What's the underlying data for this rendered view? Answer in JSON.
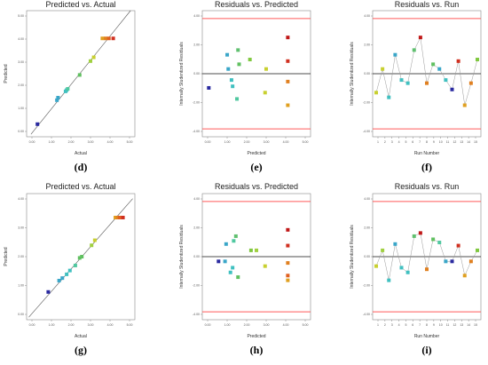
{
  "chart_data": [
    {
      "type": "scatter",
      "panel": "d",
      "title": "Predicted vs. Actual",
      "xlabel": "Actual",
      "ylabel": "Predicted",
      "letter": "(d)",
      "xlim": [
        0,
        10
      ],
      "ylim": [
        0,
        10
      ],
      "xticks": [
        "0.00",
        "1.00",
        "2.00",
        "3.00",
        "4.00",
        "5.00"
      ],
      "yticks": [
        "0.00",
        "1.00",
        "2.00",
        "3.00",
        "4.00",
        "5.00"
      ],
      "reference_line": [
        [
          0.4,
          0.2
        ],
        [
          9.6,
          10.0
        ]
      ],
      "points": [
        {
          "x": 1.0,
          "y": 1.0,
          "color": "#2a2aa0"
        },
        {
          "x": 2.8,
          "y": 2.9,
          "color": "#3aa6c8"
        },
        {
          "x": 2.9,
          "y": 3.1,
          "color": "#3aa6c8"
        },
        {
          "x": 3.6,
          "y": 3.6,
          "color": "#40c0c0"
        },
        {
          "x": 3.7,
          "y": 3.7,
          "color": "#40c0c0"
        },
        {
          "x": 3.8,
          "y": 3.8,
          "color": "#50c8a0"
        },
        {
          "x": 4.9,
          "y": 4.9,
          "color": "#60c060"
        },
        {
          "x": 5.9,
          "y": 6.0,
          "color": "#a0d040"
        },
        {
          "x": 6.2,
          "y": 6.3,
          "color": "#c8d030"
        },
        {
          "x": 7.0,
          "y": 7.8,
          "color": "#e0a020"
        },
        {
          "x": 7.3,
          "y": 7.8,
          "color": "#e08020"
        },
        {
          "x": 7.6,
          "y": 7.8,
          "color": "#e06020"
        },
        {
          "x": 8.0,
          "y": 7.8,
          "color": "#d03020"
        }
      ]
    },
    {
      "type": "scatter",
      "panel": "e",
      "title": "Residuals vs. Predicted",
      "xlabel": "Predicted",
      "ylabel": "Internally Studentized Residuals",
      "letter": "(e)",
      "xlim": [
        0,
        10
      ],
      "ylim": [
        -4,
        4
      ],
      "xticks": [
        "0.00",
        "1.00",
        "2.00",
        "3.00",
        "4.00",
        "5.00"
      ],
      "yticks": [
        "-4.00",
        "-2.00",
        "0.00",
        "2.00",
        "4.00"
      ],
      "limit_lines": [
        3.5,
        -3.5
      ],
      "points": [
        {
          "x": 0.6,
          "y": -0.9,
          "color": "#2a2aa0"
        },
        {
          "x": 2.3,
          "y": 1.2,
          "color": "#3aa6c8"
        },
        {
          "x": 2.4,
          "y": 0.3,
          "color": "#3aa6c8"
        },
        {
          "x": 2.7,
          "y": -0.4,
          "color": "#40c0c0"
        },
        {
          "x": 2.8,
          "y": -0.8,
          "color": "#40c0c0"
        },
        {
          "x": 3.2,
          "y": -1.6,
          "color": "#50c8a0"
        },
        {
          "x": 3.3,
          "y": 1.5,
          "color": "#60c070"
        },
        {
          "x": 3.4,
          "y": 0.6,
          "color": "#60c060"
        },
        {
          "x": 4.4,
          "y": 0.9,
          "color": "#80c840"
        },
        {
          "x": 5.8,
          "y": -1.2,
          "color": "#c8d030"
        },
        {
          "x": 5.9,
          "y": 0.3,
          "color": "#c8d030"
        },
        {
          "x": 7.9,
          "y": 2.3,
          "color": "#c01818"
        },
        {
          "x": 7.9,
          "y": 0.8,
          "color": "#d03020"
        },
        {
          "x": 7.9,
          "y": -0.5,
          "color": "#e08020"
        },
        {
          "x": 7.9,
          "y": -2.0,
          "color": "#e0a020"
        }
      ]
    },
    {
      "type": "line",
      "panel": "f",
      "title": "Residuals vs. Run",
      "xlabel": "Run Number",
      "ylabel": "Internally Studentized Residuals",
      "letter": "(f)",
      "xlim": [
        0,
        16
      ],
      "ylim": [
        -4,
        4
      ],
      "xticks": [
        "1",
        "2",
        "3",
        "4",
        "5",
        "6",
        "7",
        "8",
        "9",
        "10",
        "11",
        "12",
        "13",
        "14",
        "15"
      ],
      "yticks": [
        "-4.00",
        "-2.00",
        "0.00",
        "2.00",
        "4.00"
      ],
      "limit_lines": [
        3.5,
        -3.5
      ],
      "points": [
        {
          "x": 1,
          "y": -1.2,
          "color": "#c8d030"
        },
        {
          "x": 2,
          "y": 0.3,
          "color": "#c8d030"
        },
        {
          "x": 3,
          "y": -1.5,
          "color": "#40c0c0"
        },
        {
          "x": 4,
          "y": 1.2,
          "color": "#3aa6c8"
        },
        {
          "x": 5,
          "y": -0.4,
          "color": "#40c0c0"
        },
        {
          "x": 6,
          "y": -0.6,
          "color": "#40c0c0"
        },
        {
          "x": 7,
          "y": 1.5,
          "color": "#60c070"
        },
        {
          "x": 8,
          "y": 2.3,
          "color": "#c01818"
        },
        {
          "x": 9,
          "y": -0.6,
          "color": "#e08020"
        },
        {
          "x": 10,
          "y": 0.6,
          "color": "#60c060"
        },
        {
          "x": 11,
          "y": 0.3,
          "color": "#3aa6c8"
        },
        {
          "x": 12,
          "y": -0.4,
          "color": "#40c0c0"
        },
        {
          "x": 13,
          "y": -1.0,
          "color": "#2a2aa0"
        },
        {
          "x": 14,
          "y": 0.8,
          "color": "#d03020"
        },
        {
          "x": 15,
          "y": -2.0,
          "color": "#e0a020"
        },
        {
          "x": 16,
          "y": -0.6,
          "color": "#e08020"
        },
        {
          "x": 17,
          "y": 0.9,
          "color": "#80c840"
        }
      ]
    },
    {
      "type": "scatter",
      "panel": "g",
      "title": "Predicted vs. Actual",
      "xlabel": "Actual",
      "ylabel": "Predicted",
      "letter": "(g)",
      "xlim": [
        0,
        10
      ],
      "ylim": [
        0,
        10
      ],
      "xticks": [
        "0.00",
        "1.00",
        "2.00",
        "3.00",
        "4.00",
        "5.00"
      ],
      "yticks": [
        "0.00",
        "1.00",
        "2.00",
        "3.00",
        "4.00"
      ],
      "reference_line": [
        [
          0.2,
          0.2
        ],
        [
          9.8,
          9.6
        ]
      ],
      "points": [
        {
          "x": 2.0,
          "y": 2.2,
          "color": "#2a2aa0"
        },
        {
          "x": 3.0,
          "y": 3.1,
          "color": "#3aa6c8"
        },
        {
          "x": 3.3,
          "y": 3.3,
          "color": "#3aa6c8"
        },
        {
          "x": 3.7,
          "y": 3.6,
          "color": "#40c0c0"
        },
        {
          "x": 4.0,
          "y": 3.9,
          "color": "#40c0c0"
        },
        {
          "x": 4.5,
          "y": 4.3,
          "color": "#50c8a0"
        },
        {
          "x": 4.9,
          "y": 4.9,
          "color": "#60c060"
        },
        {
          "x": 5.1,
          "y": 5.0,
          "color": "#60c060"
        },
        {
          "x": 6.0,
          "y": 5.9,
          "color": "#a0d040"
        },
        {
          "x": 6.3,
          "y": 6.3,
          "color": "#c8d030"
        },
        {
          "x": 8.2,
          "y": 8.1,
          "color": "#e0a020"
        },
        {
          "x": 8.4,
          "y": 8.1,
          "color": "#e08020"
        },
        {
          "x": 8.6,
          "y": 8.1,
          "color": "#e06020"
        },
        {
          "x": 8.9,
          "y": 8.1,
          "color": "#d03020"
        }
      ]
    },
    {
      "type": "scatter",
      "panel": "h",
      "title": "Residuals vs. Predicted",
      "xlabel": "Predicted",
      "ylabel": "Internally Studentized Residuals",
      "letter": "(h)",
      "xlim": [
        0,
        10
      ],
      "ylim": [
        -4,
        4
      ],
      "xticks": [
        "0.00",
        "1.00",
        "2.00",
        "3.00",
        "4.00",
        "5.00"
      ],
      "yticks": [
        "-4.00",
        "-2.00",
        "0.00",
        "2.00",
        "4.00"
      ],
      "limit_lines": [
        3.5,
        -3.5
      ],
      "points": [
        {
          "x": 1.5,
          "y": -0.3,
          "color": "#2a2aa0"
        },
        {
          "x": 2.1,
          "y": -0.3,
          "color": "#3aa6c8"
        },
        {
          "x": 2.2,
          "y": 0.8,
          "color": "#3aa6c8"
        },
        {
          "x": 2.6,
          "y": -1.0,
          "color": "#40c0c0"
        },
        {
          "x": 2.8,
          "y": -0.7,
          "color": "#40c0c0"
        },
        {
          "x": 2.9,
          "y": 1.0,
          "color": "#50c8a0"
        },
        {
          "x": 3.1,
          "y": 1.3,
          "color": "#60c070"
        },
        {
          "x": 3.3,
          "y": -1.3,
          "color": "#60c060"
        },
        {
          "x": 4.5,
          "y": 0.4,
          "color": "#80c840"
        },
        {
          "x": 5.0,
          "y": 0.4,
          "color": "#a0d040"
        },
        {
          "x": 5.8,
          "y": -0.6,
          "color": "#c8d030"
        },
        {
          "x": 7.9,
          "y": 1.7,
          "color": "#c01818"
        },
        {
          "x": 7.9,
          "y": 0.7,
          "color": "#d03020"
        },
        {
          "x": 7.9,
          "y": -0.4,
          "color": "#e08020"
        },
        {
          "x": 7.9,
          "y": -1.2,
          "color": "#e06020"
        },
        {
          "x": 7.9,
          "y": -1.5,
          "color": "#e0a020"
        }
      ]
    },
    {
      "type": "line",
      "panel": "i",
      "title": "Residuals vs. Run",
      "xlabel": "Run Number",
      "ylabel": "Internally Studentized Residuals",
      "letter": "(i)",
      "xlim": [
        0,
        16
      ],
      "ylim": [
        -4,
        4
      ],
      "xticks": [
        "1",
        "2",
        "3",
        "4",
        "5",
        "6",
        "7",
        "8",
        "9",
        "10",
        "11",
        "12",
        "13",
        "14",
        "15"
      ],
      "yticks": [
        "-4.00",
        "-2.00",
        "0.00",
        "2.00",
        "4.00"
      ],
      "limit_lines": [
        3.5,
        -3.5
      ],
      "points": [
        {
          "x": 1,
          "y": -0.6,
          "color": "#c8d030"
        },
        {
          "x": 2,
          "y": 0.4,
          "color": "#a0d040"
        },
        {
          "x": 3,
          "y": -1.5,
          "color": "#40c0c0"
        },
        {
          "x": 4,
          "y": 0.8,
          "color": "#3aa6c8"
        },
        {
          "x": 5,
          "y": -0.7,
          "color": "#40c0c0"
        },
        {
          "x": 6,
          "y": -1.0,
          "color": "#40c0c0"
        },
        {
          "x": 7,
          "y": 1.3,
          "color": "#60c070"
        },
        {
          "x": 8,
          "y": 1.5,
          "color": "#c01818"
        },
        {
          "x": 9,
          "y": -0.8,
          "color": "#e08020"
        },
        {
          "x": 10,
          "y": 1.1,
          "color": "#60c060"
        },
        {
          "x": 11,
          "y": 0.9,
          "color": "#50c8a0"
        },
        {
          "x": 12,
          "y": -0.3,
          "color": "#3aa6c8"
        },
        {
          "x": 13,
          "y": -0.3,
          "color": "#2a2aa0"
        },
        {
          "x": 14,
          "y": 0.7,
          "color": "#d03020"
        },
        {
          "x": 15,
          "y": -1.2,
          "color": "#e0a020"
        },
        {
          "x": 16,
          "y": -0.3,
          "color": "#e08020"
        },
        {
          "x": 17,
          "y": 0.4,
          "color": "#80c840"
        }
      ]
    }
  ]
}
